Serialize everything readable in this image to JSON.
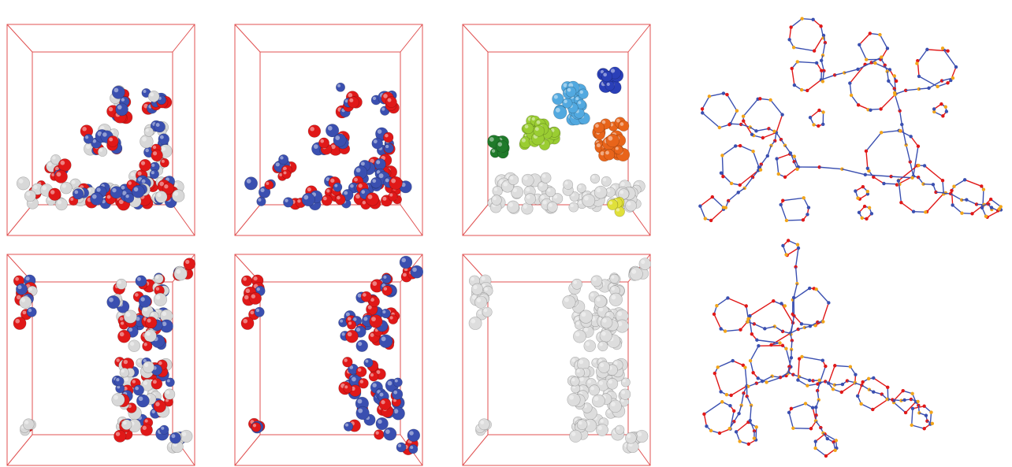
{
  "figure": {
    "panels": [
      {
        "id": "box-top-1",
        "coloring": "element",
        "colors": [
          "#e01818",
          "#3a4fb0",
          "#d8d8d8"
        ]
      },
      {
        "id": "box-top-2",
        "coloring": "element-no-hydrogen",
        "colors": [
          "#e01818",
          "#3a4fb0"
        ]
      },
      {
        "id": "box-top-3",
        "coloring": "cluster",
        "colors": [
          "#1f7a2a",
          "#9acd32",
          "#52a9e0",
          "#2a3fb8",
          "#e8641a",
          "#dddddd",
          "#e0e03a"
        ]
      },
      {
        "id": "box-bottom-1",
        "coloring": "element",
        "colors": [
          "#e01818",
          "#3a4fb0",
          "#d8d8d8"
        ]
      },
      {
        "id": "box-bottom-2",
        "coloring": "element-no-hydrogen",
        "colors": [
          "#e01818",
          "#3a4fb0"
        ]
      },
      {
        "id": "box-bottom-3",
        "coloring": "single-cluster",
        "colors": [
          "#dddddd"
        ]
      }
    ],
    "networks": [
      {
        "id": "network-top",
        "node_colors": [
          "#3a4fb0",
          "#e01818",
          "#f2a51a"
        ]
      },
      {
        "id": "network-bottom",
        "node_colors": [
          "#3a4fb0",
          "#e01818",
          "#f2a51a"
        ]
      }
    ]
  }
}
